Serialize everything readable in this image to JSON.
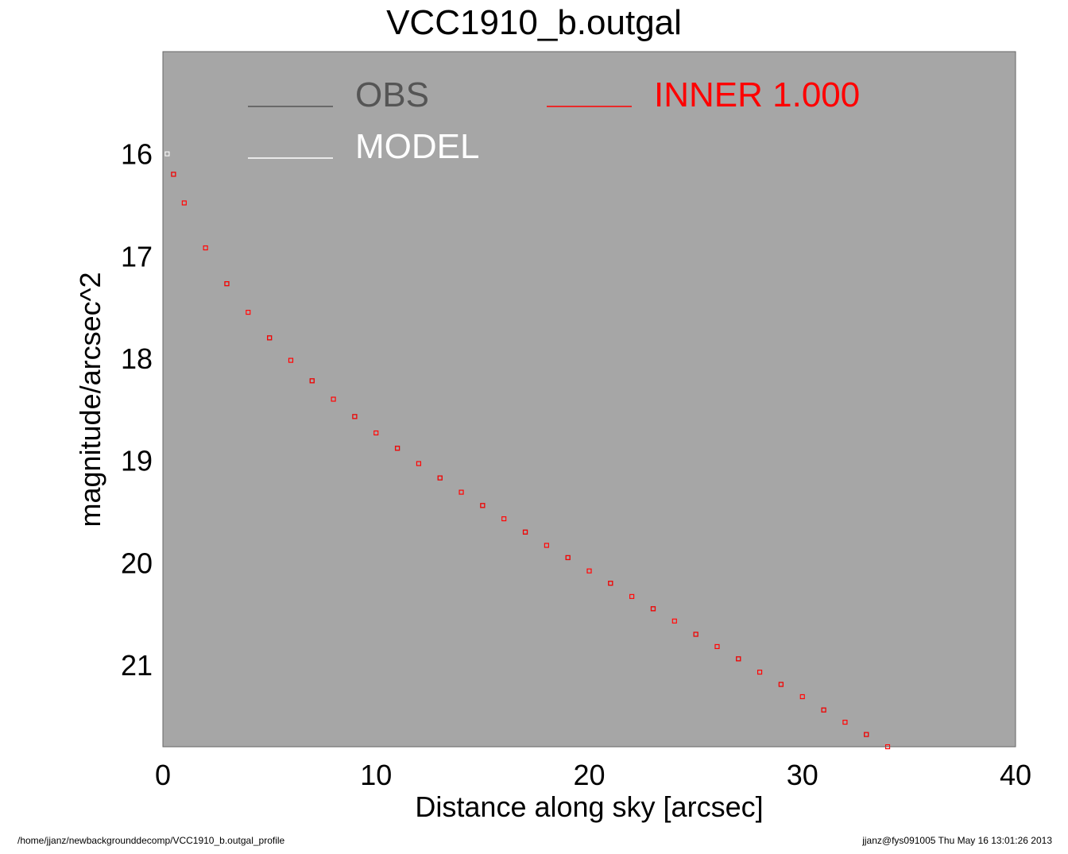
{
  "chart_data": {
    "type": "scatter",
    "title": "VCC1910_b.outgal",
    "xlabel": "Distance along sky [arcsec]",
    "ylabel": "magnitude/arcsec^2",
    "xlim": [
      0,
      40
    ],
    "ylim": [
      15.0,
      21.8
    ],
    "y_inverted": true,
    "x_ticks": [
      0,
      10,
      20,
      30,
      40
    ],
    "y_ticks": [
      16,
      17,
      18,
      19,
      20,
      21
    ],
    "background": "#a6a6a6",
    "legend_placement": "top-left",
    "legend": [
      {
        "label": "OBS",
        "color": "#555555"
      },
      {
        "label": "MODEL",
        "color": "#ffffff"
      },
      {
        "label": "INNER  1.000",
        "color": "#ff0000"
      }
    ],
    "series": [
      {
        "name": "OBS",
        "color": "#555555",
        "marker": "square",
        "points": [
          [
            0.2,
            16.0
          ],
          [
            0.5,
            16.2
          ],
          [
            1,
            16.48
          ],
          [
            2,
            16.92
          ],
          [
            3,
            17.27
          ],
          [
            4,
            17.55
          ],
          [
            5,
            17.8
          ],
          [
            6,
            18.02
          ],
          [
            7,
            18.22
          ],
          [
            8,
            18.4
          ],
          [
            9,
            18.57
          ],
          [
            10,
            18.73
          ],
          [
            11,
            18.88
          ],
          [
            12,
            19.03
          ],
          [
            13,
            19.17
          ],
          [
            14,
            19.31
          ],
          [
            15,
            19.44
          ],
          [
            16,
            19.57
          ],
          [
            17,
            19.7
          ],
          [
            18,
            19.83
          ],
          [
            19,
            19.95
          ],
          [
            20,
            20.08
          ],
          [
            21,
            20.2
          ],
          [
            22,
            20.33
          ],
          [
            23,
            20.45
          ],
          [
            24,
            20.57
          ],
          [
            25,
            20.7
          ],
          [
            26,
            20.82
          ],
          [
            27,
            20.94
          ],
          [
            28,
            21.07
          ],
          [
            29,
            21.19
          ],
          [
            30,
            21.31
          ],
          [
            31,
            21.44
          ],
          [
            32,
            21.56
          ],
          [
            33,
            21.68
          ]
        ]
      },
      {
        "name": "MODEL",
        "color": "#ffffff",
        "marker": "square",
        "points": [
          [
            0.2,
            16.0
          ],
          [
            1,
            16.48
          ],
          [
            2,
            16.92
          ],
          [
            4,
            17.55
          ],
          [
            6,
            18.02
          ],
          [
            8,
            18.4
          ],
          [
            10,
            18.73
          ],
          [
            12,
            19.03
          ],
          [
            14,
            19.31
          ],
          [
            16,
            19.57
          ],
          [
            18,
            19.83
          ],
          [
            20,
            20.08
          ],
          [
            22,
            20.33
          ],
          [
            24,
            20.57
          ],
          [
            26,
            20.82
          ],
          [
            28,
            21.07
          ],
          [
            30,
            21.31
          ],
          [
            32,
            21.56
          ],
          [
            34,
            21.8
          ]
        ]
      },
      {
        "name": "INNER  1.000",
        "color": "#ff0000",
        "marker": "square",
        "points": [
          [
            0.5,
            16.2
          ],
          [
            1,
            16.48
          ],
          [
            2,
            16.92
          ],
          [
            3,
            17.27
          ],
          [
            4,
            17.55
          ],
          [
            5,
            17.8
          ],
          [
            6,
            18.02
          ],
          [
            7,
            18.22
          ],
          [
            8,
            18.4
          ],
          [
            9,
            18.57
          ],
          [
            10,
            18.73
          ],
          [
            11,
            18.88
          ],
          [
            12,
            19.03
          ],
          [
            13,
            19.17
          ],
          [
            14,
            19.31
          ],
          [
            15,
            19.44
          ],
          [
            16,
            19.57
          ],
          [
            17,
            19.7
          ],
          [
            18,
            19.83
          ],
          [
            19,
            19.95
          ],
          [
            20,
            20.08
          ],
          [
            21,
            20.2
          ],
          [
            22,
            20.33
          ],
          [
            23,
            20.45
          ],
          [
            24,
            20.57
          ],
          [
            25,
            20.7
          ],
          [
            26,
            20.82
          ],
          [
            27,
            20.94
          ],
          [
            28,
            21.07
          ],
          [
            29,
            21.19
          ],
          [
            30,
            21.31
          ],
          [
            31,
            21.44
          ],
          [
            32,
            21.56
          ],
          [
            33,
            21.68
          ],
          [
            34,
            21.8
          ]
        ]
      }
    ]
  },
  "footer": {
    "path": "/home/jjanz/newbackgrounddecomp/VCC1910_b.outgal_profile",
    "stamp": "jjanz@fys091005  Thu May 16 13:01:26 2013"
  }
}
